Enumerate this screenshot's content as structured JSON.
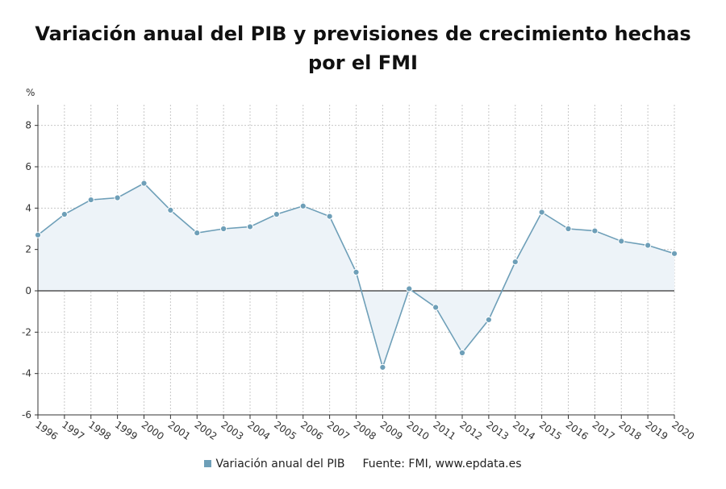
{
  "title": "Variación anual del PIB y previsiones de crecimiento hechas por el FMI",
  "colors": {
    "line": "#6e9fb8",
    "marker": "#6e9fb8",
    "area": "#edf3f8",
    "grid": "#c8c8c8",
    "zero_line": "#333333",
    "axis": "#333333"
  },
  "legend": {
    "series_label": "Variación anual del PIB",
    "source": "Fuente: FMI, www.epdata.es"
  },
  "chart_data": {
    "type": "area",
    "title": "Variación anual del PIB y previsiones de crecimiento hechas por el FMI",
    "ylabel": "%",
    "xlabel": "",
    "ylim": [
      -6,
      9
    ],
    "yticks": [
      -6,
      -4,
      -2,
      0,
      2,
      4,
      6,
      8
    ],
    "grid": true,
    "legend_position": "bottom",
    "categories": [
      "1996",
      "1997",
      "1998",
      "1999",
      "2000",
      "2001",
      "2002",
      "2003",
      "2004",
      "2005",
      "2006",
      "2007",
      "2008",
      "2009",
      "2010",
      "2011",
      "2012",
      "2013",
      "2014",
      "2015",
      "2016",
      "2017",
      "2018",
      "2019",
      "2020"
    ],
    "series": [
      {
        "name": "Variación anual del PIB",
        "values": [
          2.7,
          3.7,
          4.4,
          4.5,
          5.2,
          3.9,
          2.8,
          3.0,
          3.1,
          3.7,
          4.1,
          3.6,
          0.9,
          -3.7,
          0.1,
          -0.8,
          -3.0,
          -1.4,
          1.4,
          3.8,
          3.0,
          2.9,
          2.4,
          2.2,
          1.8
        ]
      }
    ]
  }
}
